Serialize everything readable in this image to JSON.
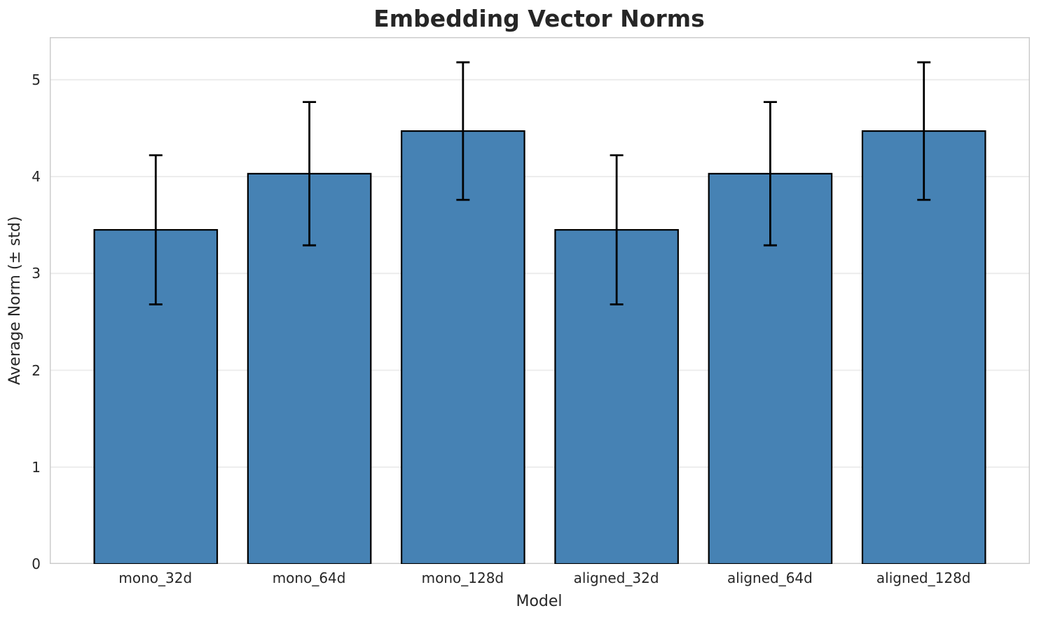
{
  "figure": {
    "title": "Embedding Vector Norms"
  },
  "chart_data": {
    "type": "bar",
    "title": "Embedding Vector Norms",
    "xlabel": "Model",
    "ylabel": "Average Norm (± std)",
    "categories": [
      "mono_32d",
      "mono_64d",
      "mono_128d",
      "aligned_32d",
      "aligned_64d",
      "aligned_128d"
    ],
    "values": [
      3.45,
      4.03,
      4.47,
      3.45,
      4.03,
      4.47
    ],
    "errors": [
      0.77,
      0.74,
      0.71,
      0.77,
      0.74,
      0.71
    ],
    "error_style": "symmetric std, black caps",
    "yticks": [
      0,
      1,
      2,
      3,
      4,
      5
    ],
    "ylim": [
      0,
      5.44
    ],
    "xlim": [
      -0.69,
      5.69
    ],
    "bar_width": 0.8,
    "grid": "horizontal",
    "legend": null,
    "colors": {
      "bar_fill": "#4682b4",
      "bar_edge": "#000000",
      "error_bar": "#000000",
      "gridline": "#ebebeb",
      "spine": "#cccccc",
      "text": "#262626",
      "background": "#ffffff"
    }
  }
}
